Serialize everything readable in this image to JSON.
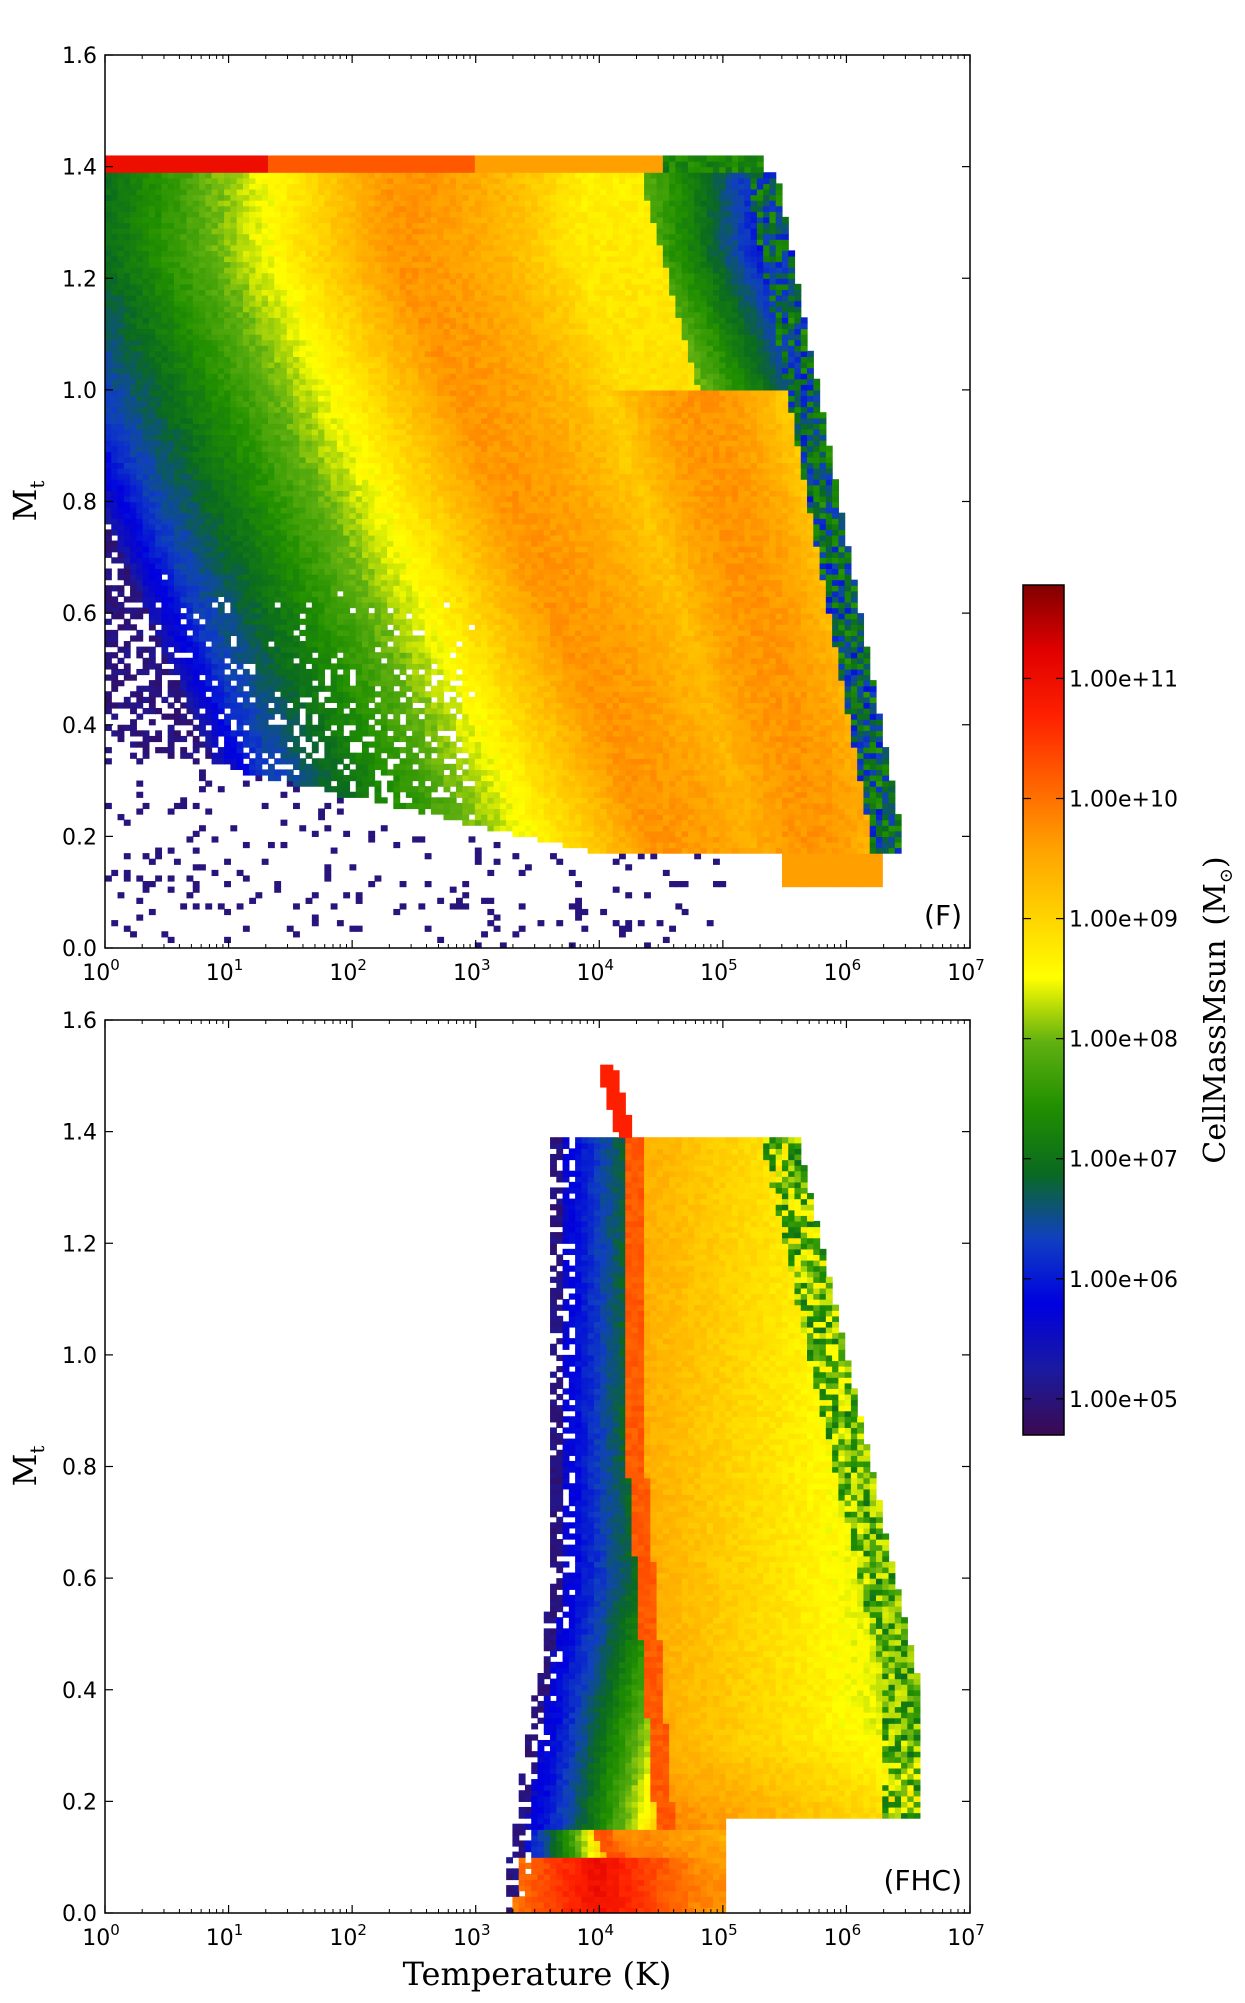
{
  "chart_data": [
    {
      "type": "heatmap",
      "panel_label": "(F)",
      "xlabel": "",
      "ylabel": "M",
      "ylabel_sub": "t",
      "xscale": "log",
      "xlim": [
        1,
        10000000
      ],
      "ylim": [
        0.0,
        1.6
      ],
      "x_ticks": [
        {
          "base": "10",
          "exp": "0"
        },
        {
          "base": "10",
          "exp": "1"
        },
        {
          "base": "10",
          "exp": "2"
        },
        {
          "base": "10",
          "exp": "3"
        },
        {
          "base": "10",
          "exp": "4"
        },
        {
          "base": "10",
          "exp": "5"
        },
        {
          "base": "10",
          "exp": "6"
        },
        {
          "base": "10",
          "exp": "7"
        }
      ],
      "y_ticks": [
        "0.0",
        "0.2",
        "0.4",
        "0.6",
        "0.8",
        "1.0",
        "1.2",
        "1.4",
        "1.6"
      ],
      "grid": false,
      "approximate_distribution": {
        "ridge_high": "log10(T) ~ 2.5 to 3.5 at Mt ~ 1.0-1.4, mass ~ 1e9-1e10",
        "ridge_low": "log10(T) ~ 5 to 6 at Mt ~ 0.2-0.4, mass ~ 1e10",
        "band_top": "Mt = 1.41 for T = 1e0 to 1e5, mass up to 1e11",
        "low_T_fill": "Mt 0.2-1.4 at T < 1e3, mass ~ 1e5-1e6"
      }
    },
    {
      "type": "heatmap",
      "panel_label": "(FHC)",
      "xlabel": "Temperature (K)",
      "ylabel": "M",
      "ylabel_sub": "t",
      "xscale": "log",
      "xlim": [
        1,
        10000000
      ],
      "ylim": [
        0.0,
        1.6
      ],
      "x_ticks": [
        {
          "base": "10",
          "exp": "0"
        },
        {
          "base": "10",
          "exp": "1"
        },
        {
          "base": "10",
          "exp": "2"
        },
        {
          "base": "10",
          "exp": "3"
        },
        {
          "base": "10",
          "exp": "4"
        },
        {
          "base": "10",
          "exp": "5"
        },
        {
          "base": "10",
          "exp": "6"
        },
        {
          "base": "10",
          "exp": "7"
        }
      ],
      "y_ticks": [
        "0.0",
        "0.2",
        "0.4",
        "0.6",
        "0.8",
        "1.0",
        "1.2",
        "1.4",
        "1.6"
      ],
      "grid": false,
      "approximate_distribution": {
        "cold_column": "log10(T) ~ 3.6 to 4.3 for Mt 0-1.38, mass ~ 1e5-1e7",
        "ridge": "log10(T) ~ 4.3 near Mt 1.38 curving to ~ 4.2-4.8 at Mt 0, mass ~ 1e10",
        "hot_wing": "log10(T) 4.5 to 6.7, Mt 0.2-1.4, mass ~ 1e8-1e9",
        "base_peak": "Mt ~ 0, log10(T) ~ 4, mass ~ 1e11"
      }
    }
  ],
  "colorbar": {
    "label": "CellMassMsun",
    "label_unit": "(M",
    "label_unit_sub": "⊙",
    "label_unit_close": ")",
    "scale": "log",
    "range": [
      50000,
      600000000000
    ],
    "ticks": [
      "1.00e+05",
      "1.00e+06",
      "1.00e+07",
      "1.00e+08",
      "1.00e+09",
      "1.00e+10",
      "1.00e+11"
    ],
    "colormap": [
      "#3b0a50",
      "#1a1aa0",
      "#0000e0",
      "#1040c0",
      "#0a6a20",
      "#208f00",
      "#60b010",
      "#ffff00",
      "#ffd000",
      "#ffa000",
      "#ff6000",
      "#ff2000",
      "#e00000",
      "#800000"
    ]
  }
}
